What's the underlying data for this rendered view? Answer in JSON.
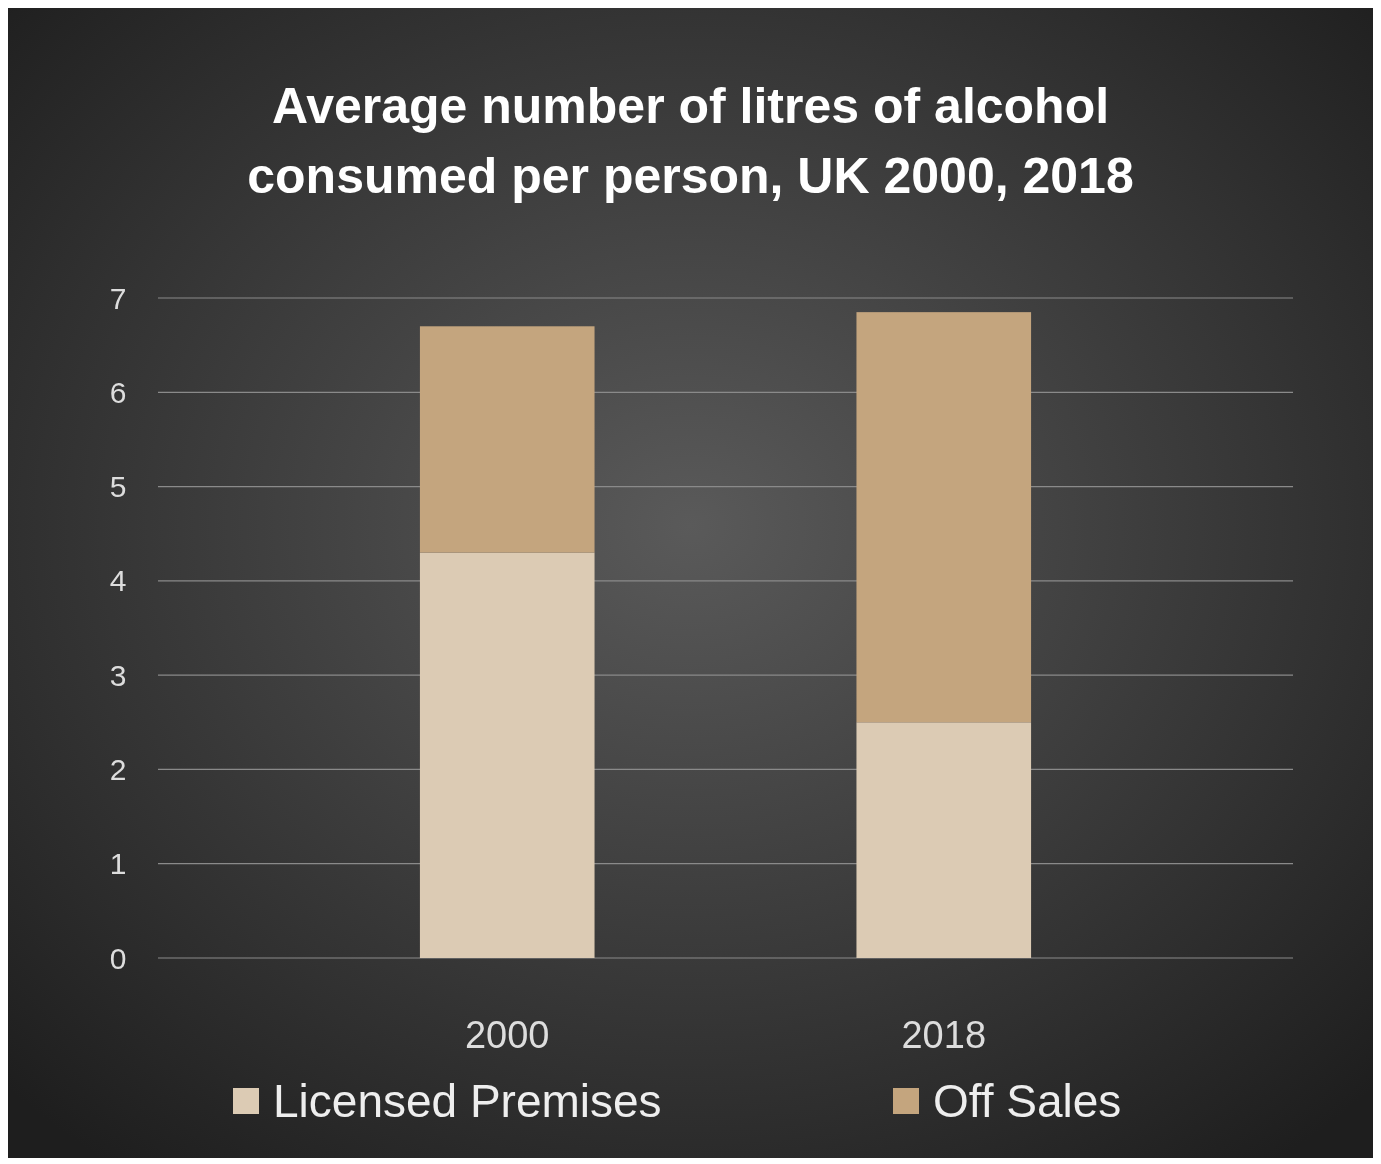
{
  "chart_data": {
    "type": "bar",
    "title": "Average number of litres of alcohol consumed per person, UK 2000, 2018",
    "categories": [
      "2000",
      "2018"
    ],
    "stacked": true,
    "series": [
      {
        "name": "Licensed Premises",
        "color": "#dccbb4",
        "values": [
          4.3,
          2.5
        ]
      },
      {
        "name": "Off Sales",
        "color": "#c4a57e",
        "values": [
          2.4,
          4.35
        ]
      }
    ],
    "ylim": [
      0,
      7
    ],
    "yticks": [
      0,
      1,
      2,
      3,
      4,
      5,
      6,
      7
    ],
    "grid": "y",
    "legend": "bottom"
  }
}
